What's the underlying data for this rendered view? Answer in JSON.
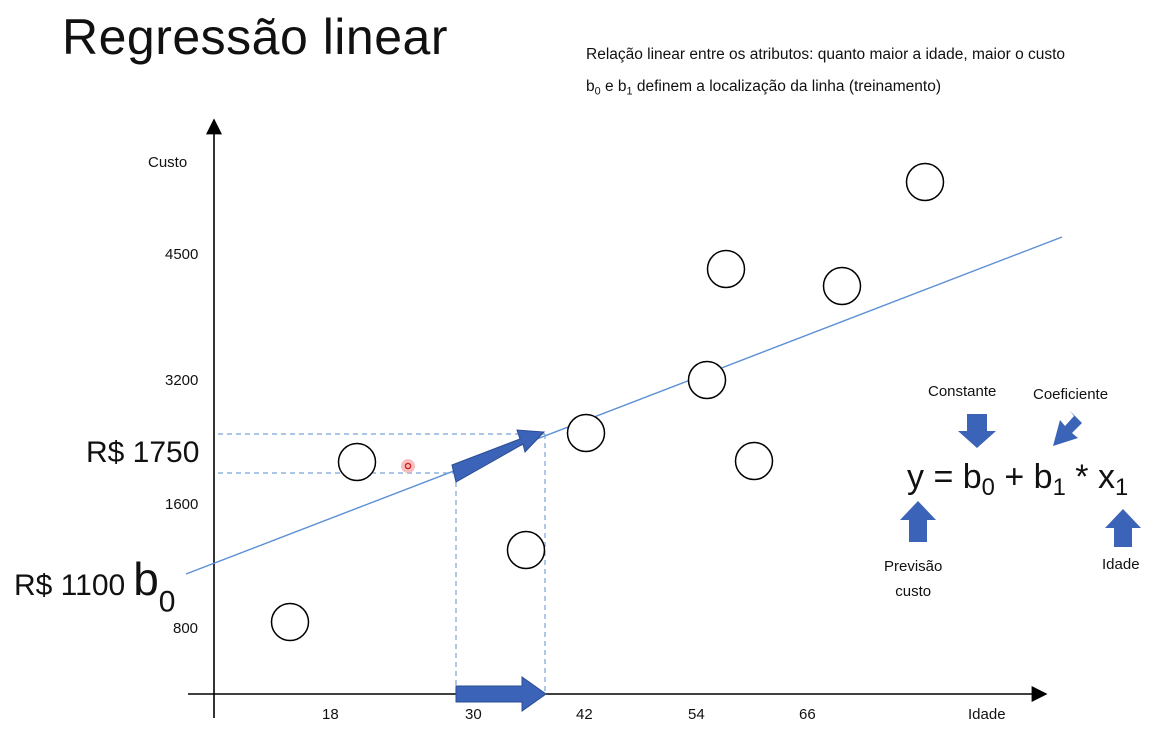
{
  "title": "Regressão linear",
  "description": {
    "line1": "Relação linear entre os atributos: quanto maior a idade, maior o custo",
    "line2_b0": "b",
    "line2_sub0": "0",
    "line2_e": " e ",
    "line2_b1": "b",
    "line2_sub1": "1",
    "line2_rest": " definem a localização da linha (treinamento)"
  },
  "axes": {
    "y_label": "Custo",
    "x_label": "Idade",
    "y_ticks": [
      "4500",
      "3200",
      "1600",
      "800"
    ],
    "x_ticks": [
      "18",
      "30",
      "42",
      "54",
      "66"
    ]
  },
  "annotations": {
    "prediction_value": "R$ 1750",
    "intercept_value": "R$ 1100",
    "intercept_symbol": "b",
    "intercept_sub": "0"
  },
  "equation": {
    "y": "y = b",
    "sub0": "0",
    "plus": " + b",
    "sub1": "1",
    "times": " * x",
    "subx": "1",
    "label_constante": "Constante",
    "label_coeficiente": "Coeficiente",
    "label_previsao_1": "Previsão",
    "label_previsao_2": "custo",
    "label_idade": "Idade"
  },
  "colors": {
    "regression_line": "#5b8fd6",
    "arrow_fill": "#3b63b8",
    "guide_dash": "#7aa3d8",
    "marker": "#e03030"
  }
}
